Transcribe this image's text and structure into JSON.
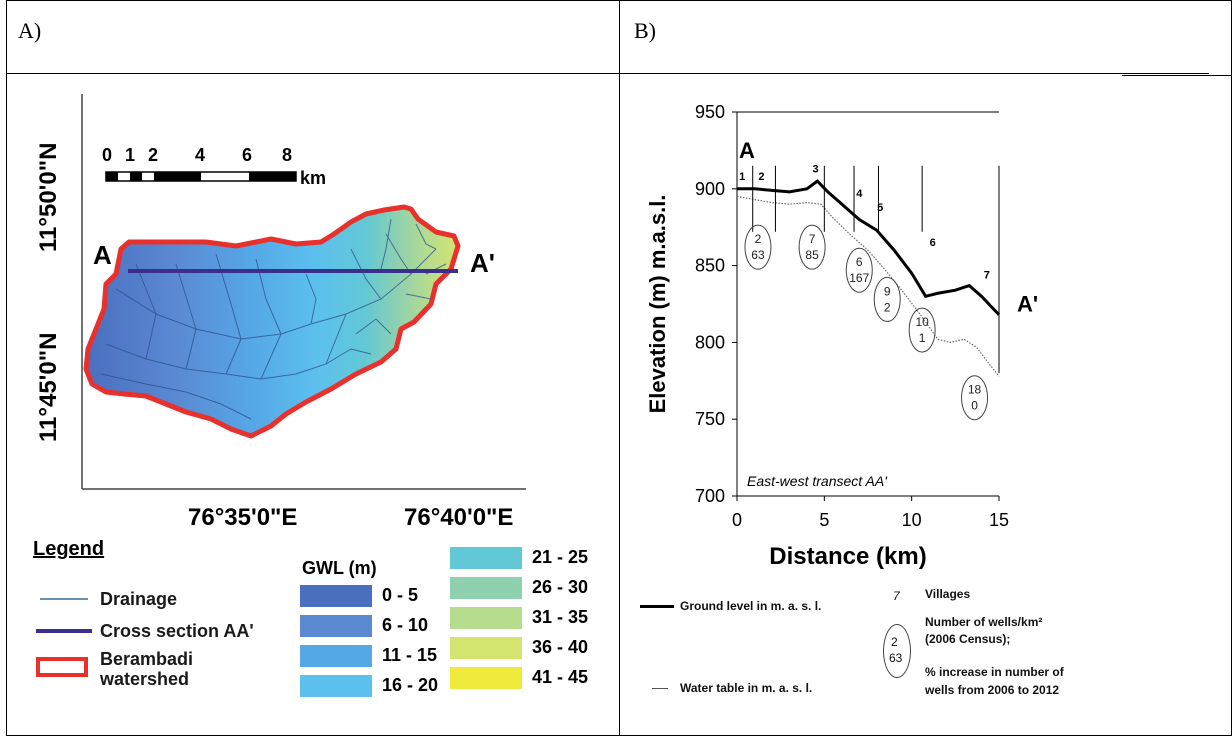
{
  "panels": {
    "a_label": "A)",
    "b_label": "B)"
  },
  "map": {
    "lat_top": "11°50'0\"N",
    "lat_bottom": "11°45'0\"N",
    "lon_left": "76°35'0\"E",
    "lon_right": "76°40'0\"E",
    "scale_numbers": [
      "0",
      "1",
      "2",
      "4",
      "6",
      "8"
    ],
    "scale_unit": "km",
    "point_a": "A",
    "point_a_prime": "A'",
    "colors": {
      "outline": "#e8302c",
      "cross_section": "#3b2f8c",
      "drainage": "#2b4f8a"
    }
  },
  "legend": {
    "title": "Legend",
    "drainage": "Drainage",
    "cross_section": "Cross section AA'",
    "watershed_line1": "Berambadi",
    "watershed_line2": "watershed",
    "gwl_title": "GWL (m)",
    "gwl_classes": [
      {
        "label": "0 - 5",
        "color": "#4a6fbf"
      },
      {
        "label": "6 - 10",
        "color": "#5b8ad3"
      },
      {
        "label": "11 - 15",
        "color": "#55a8e6"
      },
      {
        "label": "16 - 20",
        "color": "#5cc0ee"
      },
      {
        "label": "21 - 25",
        "color": "#62c8d6"
      },
      {
        "label": "26 - 30",
        "color": "#8fd1ae"
      },
      {
        "label": "31 - 35",
        "color": "#b6dc8e"
      },
      {
        "label": "36 - 40",
        "color": "#d5e46f"
      },
      {
        "label": "41 - 45",
        "color": "#f0ea3c"
      }
    ]
  },
  "chart_data": {
    "type": "line",
    "xlabel": "Distance (km)",
    "ylabel": "Elevation (m) m.a.s.l.",
    "xlim": [
      0,
      15
    ],
    "ylim": [
      700,
      950
    ],
    "xticks": [
      "0",
      "5",
      "10",
      "15"
    ],
    "yticks": [
      "700",
      "750",
      "800",
      "850",
      "900",
      "950"
    ],
    "annotation": "East-west transect AA'",
    "point_a": "A",
    "point_a_prime": "A'",
    "series": [
      {
        "legend": "Ground level in m. a. s. l.",
        "x": [
          0,
          1,
          2,
          3,
          4,
          4.6,
          5.2,
          6,
          7,
          8,
          9,
          10,
          10.8,
          11.5,
          12.5,
          13.3,
          14,
          15
        ],
        "y": [
          900,
          900,
          899,
          898,
          900,
          905,
          898,
          890,
          880,
          873,
          860,
          845,
          830,
          832,
          834,
          837,
          830,
          818
        ]
      },
      {
        "legend": "Water table in m. a. s. l.",
        "x": [
          0,
          1,
          2,
          3,
          4,
          4.8,
          5.5,
          6.5,
          7.5,
          8.5,
          9.5,
          10.5,
          11.5,
          12.2,
          13,
          13.7,
          14.3,
          15
        ],
        "y": [
          895,
          893,
          891,
          890,
          891,
          890,
          881,
          870,
          860,
          847,
          833,
          818,
          802,
          800,
          802,
          797,
          788,
          778
        ]
      }
    ],
    "village_labels": [
      {
        "id": "1",
        "x": 0.3,
        "y": 903
      },
      {
        "id": "2",
        "x": 1.4,
        "y": 903
      },
      {
        "id": "3",
        "x": 4.5,
        "y": 908
      },
      {
        "id": "4",
        "x": 7.0,
        "y": 892
      },
      {
        "id": "5",
        "x": 8.2,
        "y": 883
      },
      {
        "id": "6",
        "x": 11.2,
        "y": 860
      },
      {
        "id": "7",
        "x": 14.3,
        "y": 839
      }
    ],
    "villages": [
      {
        "x": 1.2,
        "y": 862,
        "line1": "2",
        "line2": "63"
      },
      {
        "x": 4.3,
        "y": 862,
        "line1": "7",
        "line2": "85"
      },
      {
        "x": 7.0,
        "y": 847,
        "line1": "6",
        "line2": "167"
      },
      {
        "x": 8.6,
        "y": 828,
        "line1": "9",
        "line2": "2"
      },
      {
        "x": 10.6,
        "y": 808,
        "line1": "10",
        "line2": "1"
      },
      {
        "x": 13.6,
        "y": 764,
        "line1": "18",
        "line2": "0"
      }
    ],
    "legend_villages": "Villages",
    "legend_villages_symbol": "7",
    "legend_wells_line1": "Number of wells/km²",
    "legend_wells_line2": "(2006 Census);",
    "legend_wells_line3": "% increase in number of",
    "legend_wells_line4": "wells from 2006 to 2012",
    "legend_sample_line1": "2",
    "legend_sample_line2": "63"
  }
}
